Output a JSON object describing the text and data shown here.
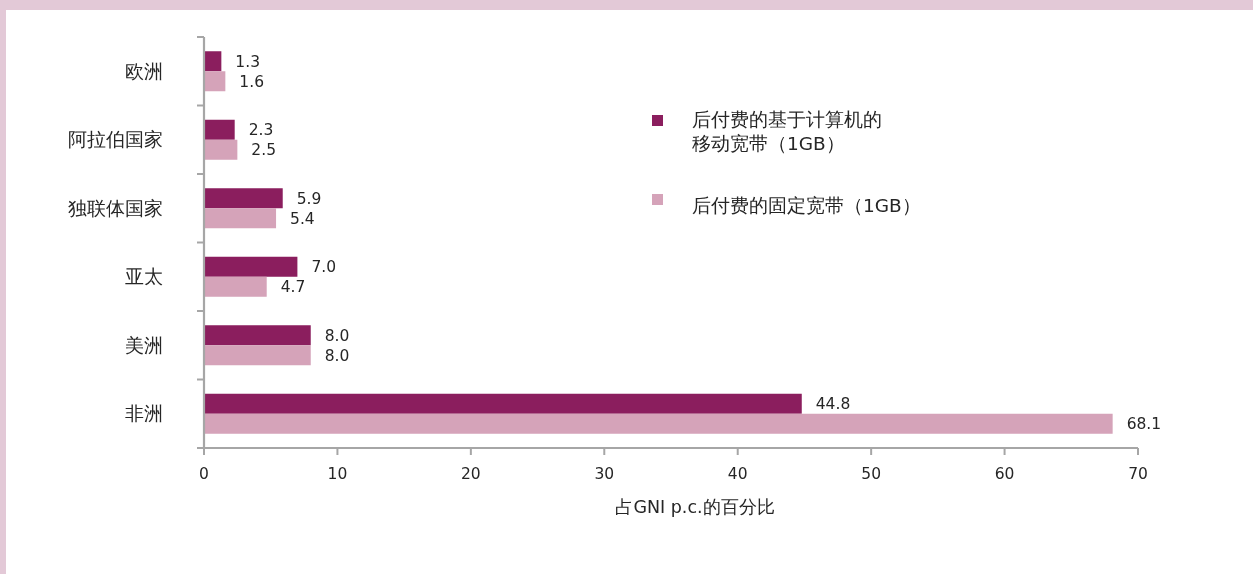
{
  "chart_data": {
    "type": "bar",
    "orientation": "horizontal",
    "categories": [
      "欧洲",
      "阿拉伯国家",
      "独联体国家",
      "亚太",
      "美洲",
      "非洲"
    ],
    "series": [
      {
        "name": "后付费的基于计算机的移动宽带（1GB）",
        "color": "#8b1e5e",
        "values": [
          1.3,
          2.3,
          5.9,
          7.0,
          8.0,
          44.8
        ],
        "value_labels": [
          "1.3",
          "2.3",
          "5.9",
          "7.0",
          "8.0",
          "44.8"
        ]
      },
      {
        "name": "后付费的固定宽带（1GB）",
        "color": "#d5a3b9",
        "values": [
          1.6,
          2.5,
          5.4,
          4.7,
          8.0,
          68.1
        ],
        "value_labels": [
          "1.6",
          "2.5",
          "5.4",
          "4.7",
          "8.0",
          "68.1"
        ]
      }
    ],
    "xlabel": "占GNI p.c.的百分比",
    "xlim": [
      0,
      70
    ],
    "xticks": [
      0,
      10,
      20,
      30,
      40,
      50,
      60,
      70
    ],
    "legend": "top right",
    "grid": false
  }
}
